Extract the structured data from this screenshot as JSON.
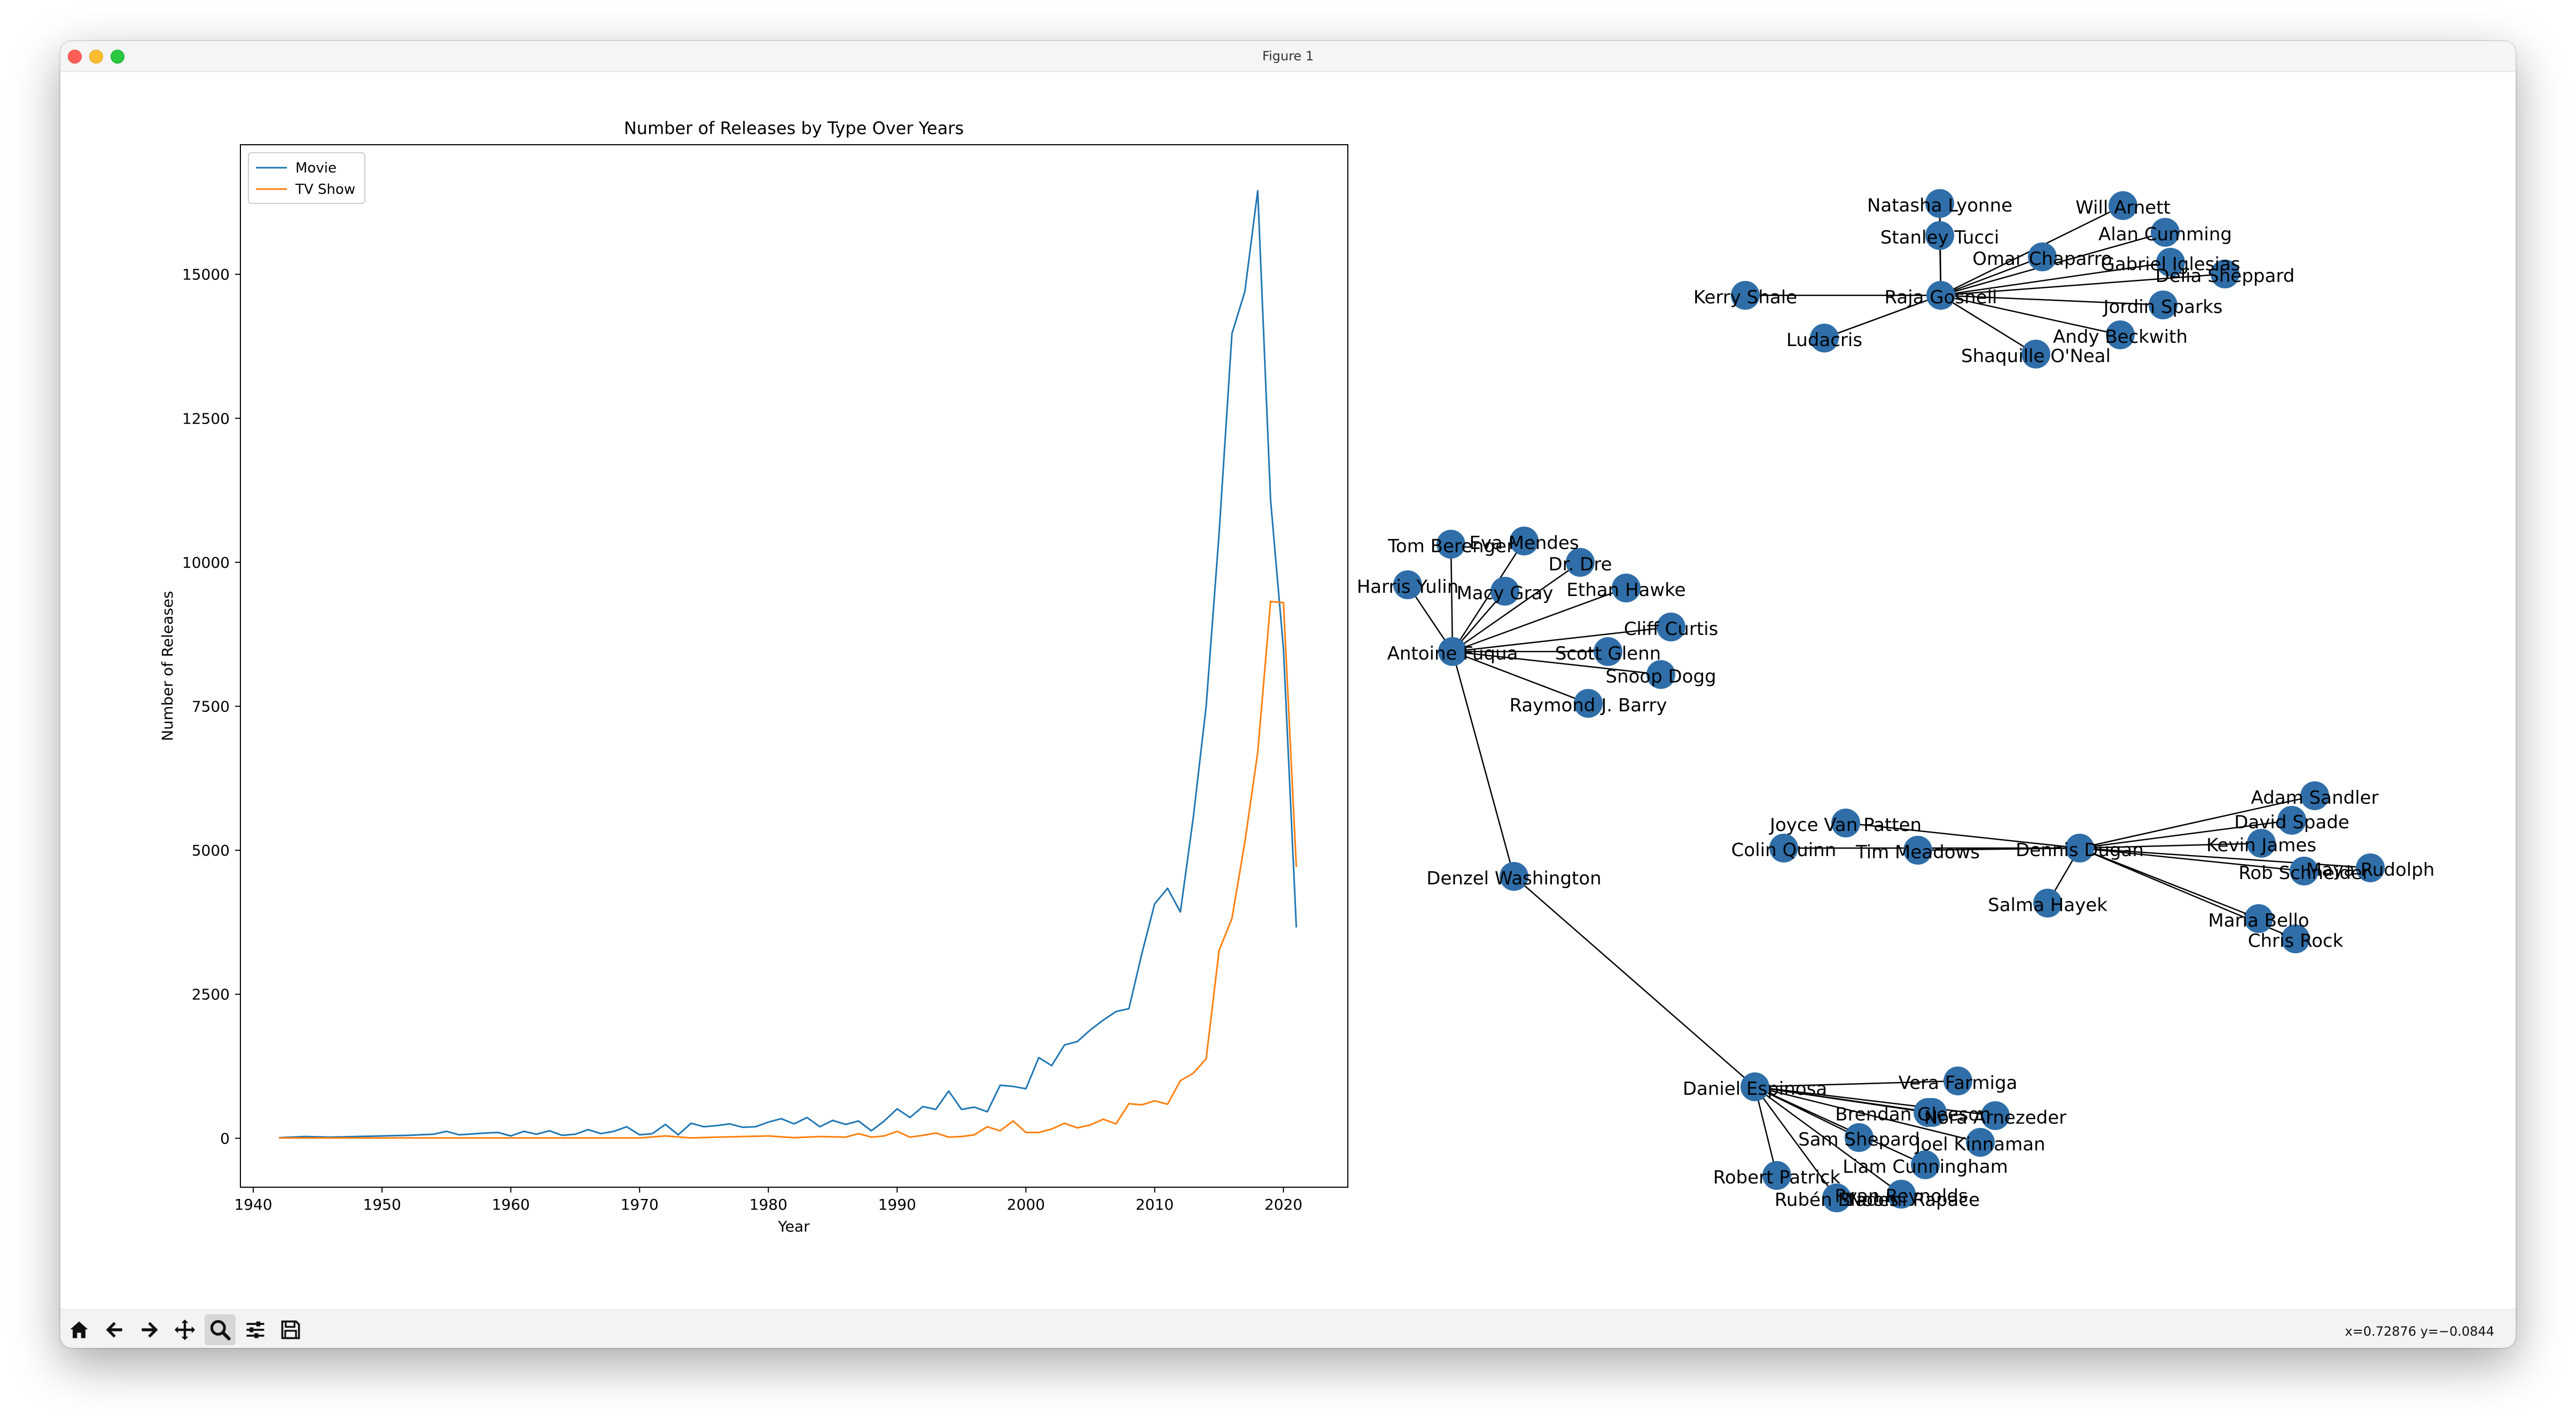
{
  "window": {
    "title": "Figure 1"
  },
  "chart_data": {
    "type": "line",
    "title": "Number of Releases by Type Over Years",
    "xlabel": "Year",
    "ylabel": "Number of Releases",
    "xlim": [
      1939,
      2025
    ],
    "ylim": [
      -850,
      17250
    ],
    "xticks": [
      1940,
      1950,
      1960,
      1970,
      1980,
      1990,
      2000,
      2010,
      2020
    ],
    "yticks": [
      0,
      2500,
      5000,
      7500,
      10000,
      12500,
      15000
    ],
    "legend": "top-left",
    "grid": false,
    "series": [
      {
        "name": "Movie",
        "color": "#1f77b4",
        "points": [
          [
            1942,
            10
          ],
          [
            1944,
            30
          ],
          [
            1946,
            20
          ],
          [
            1948,
            30
          ],
          [
            1950,
            40
          ],
          [
            1952,
            50
          ],
          [
            1954,
            70
          ],
          [
            1955,
            120
          ],
          [
            1956,
            60
          ],
          [
            1958,
            90
          ],
          [
            1959,
            100
          ],
          [
            1960,
            40
          ],
          [
            1961,
            120
          ],
          [
            1962,
            70
          ],
          [
            1963,
            130
          ],
          [
            1964,
            50
          ],
          [
            1965,
            70
          ],
          [
            1966,
            150
          ],
          [
            1967,
            80
          ],
          [
            1968,
            120
          ],
          [
            1969,
            200
          ],
          [
            1970,
            60
          ],
          [
            1971,
            80
          ],
          [
            1972,
            240
          ],
          [
            1973,
            60
          ],
          [
            1974,
            260
          ],
          [
            1975,
            200
          ],
          [
            1976,
            220
          ],
          [
            1977,
            250
          ],
          [
            1978,
            190
          ],
          [
            1979,
            200
          ],
          [
            1980,
            280
          ],
          [
            1981,
            340
          ],
          [
            1982,
            250
          ],
          [
            1983,
            360
          ],
          [
            1984,
            200
          ],
          [
            1985,
            310
          ],
          [
            1986,
            240
          ],
          [
            1987,
            300
          ],
          [
            1988,
            130
          ],
          [
            1989,
            300
          ],
          [
            1990,
            510
          ],
          [
            1991,
            360
          ],
          [
            1992,
            550
          ],
          [
            1993,
            500
          ],
          [
            1994,
            820
          ],
          [
            1995,
            500
          ],
          [
            1996,
            540
          ],
          [
            1997,
            460
          ],
          [
            1998,
            920
          ],
          [
            1999,
            900
          ],
          [
            2000,
            860
          ],
          [
            2001,
            1400
          ],
          [
            2002,
            1260
          ],
          [
            2003,
            1620
          ],
          [
            2004,
            1680
          ],
          [
            2005,
            1880
          ],
          [
            2006,
            2050
          ],
          [
            2007,
            2200
          ],
          [
            2008,
            2250
          ],
          [
            2009,
            3200
          ],
          [
            2010,
            4070
          ],
          [
            2011,
            4340
          ],
          [
            2012,
            3930
          ],
          [
            2013,
            5570
          ],
          [
            2014,
            7500
          ],
          [
            2015,
            10500
          ],
          [
            2016,
            13970
          ],
          [
            2017,
            14700
          ],
          [
            2018,
            16450
          ],
          [
            2019,
            11080
          ],
          [
            2020,
            8500
          ],
          [
            2021,
            3660
          ]
        ]
      },
      {
        "name": "TV Show",
        "color": "#ff7f0e",
        "points": [
          [
            1942,
            5
          ],
          [
            1945,
            5
          ],
          [
            1950,
            5
          ],
          [
            1955,
            5
          ],
          [
            1960,
            5
          ],
          [
            1965,
            5
          ],
          [
            1970,
            5
          ],
          [
            1972,
            40
          ],
          [
            1974,
            5
          ],
          [
            1976,
            20
          ],
          [
            1978,
            30
          ],
          [
            1980,
            40
          ],
          [
            1982,
            10
          ],
          [
            1984,
            30
          ],
          [
            1986,
            20
          ],
          [
            1987,
            80
          ],
          [
            1988,
            20
          ],
          [
            1989,
            40
          ],
          [
            1990,
            120
          ],
          [
            1991,
            20
          ],
          [
            1992,
            50
          ],
          [
            1993,
            90
          ],
          [
            1994,
            20
          ],
          [
            1995,
            30
          ],
          [
            1996,
            60
          ],
          [
            1997,
            200
          ],
          [
            1998,
            130
          ],
          [
            1999,
            300
          ],
          [
            2000,
            100
          ],
          [
            2001,
            100
          ],
          [
            2002,
            160
          ],
          [
            2003,
            260
          ],
          [
            2004,
            180
          ],
          [
            2005,
            230
          ],
          [
            2006,
            330
          ],
          [
            2007,
            250
          ],
          [
            2008,
            600
          ],
          [
            2009,
            580
          ],
          [
            2010,
            650
          ],
          [
            2011,
            590
          ],
          [
            2012,
            1000
          ],
          [
            2013,
            1130
          ],
          [
            2014,
            1380
          ],
          [
            2015,
            3260
          ],
          [
            2016,
            3820
          ],
          [
            2017,
            5140
          ],
          [
            2018,
            6700
          ],
          [
            2019,
            9320
          ],
          [
            2020,
            9300
          ],
          [
            2021,
            4710
          ]
        ]
      }
    ]
  },
  "network": {
    "node_color": "#2f6ea8",
    "nodes": [
      {
        "id": "natasha",
        "label": "Natasha Lyonne"
      },
      {
        "id": "stanley",
        "label": "Stanley Tucci"
      },
      {
        "id": "will",
        "label": "Will Arnett"
      },
      {
        "id": "alan",
        "label": "Alan Cumming"
      },
      {
        "id": "omar",
        "label": "Omar Chaparro"
      },
      {
        "id": "gabriel",
        "label": "Gabriel Iglesias"
      },
      {
        "id": "delia",
        "label": "Delia Sheppard"
      },
      {
        "id": "kerry",
        "label": "Kerry Shale"
      },
      {
        "id": "raja",
        "label": "Raja Gosnell"
      },
      {
        "id": "jordin",
        "label": "Jordin Sparks"
      },
      {
        "id": "andy",
        "label": "Andy Beckwith"
      },
      {
        "id": "ludacris",
        "label": "Ludacris"
      },
      {
        "id": "shaquille",
        "label": "Shaquille O'Neal"
      },
      {
        "id": "tom",
        "label": "Tom Berenger"
      },
      {
        "id": "eva",
        "label": "Eva Mendes"
      },
      {
        "id": "drdre",
        "label": "Dr. Dre"
      },
      {
        "id": "harris",
        "label": "Harris Yulin"
      },
      {
        "id": "macy",
        "label": "Macy Gray"
      },
      {
        "id": "ethan",
        "label": "Ethan Hawke"
      },
      {
        "id": "cliff",
        "label": "Cliff Curtis"
      },
      {
        "id": "antoine",
        "label": "Antoine Fuqua"
      },
      {
        "id": "scott",
        "label": "Scott Glenn"
      },
      {
        "id": "snoop",
        "label": "Snoop Dogg"
      },
      {
        "id": "raymond",
        "label": "Raymond J. Barry"
      },
      {
        "id": "denzel",
        "label": "Denzel Washington"
      },
      {
        "id": "adam",
        "label": "Adam Sandler"
      },
      {
        "id": "joyce",
        "label": "Joyce Van Patten"
      },
      {
        "id": "david",
        "label": "David Spade"
      },
      {
        "id": "kevin",
        "label": "Kevin James"
      },
      {
        "id": "colin",
        "label": "Colin Quinn"
      },
      {
        "id": "tim",
        "label": "Tim Meadows"
      },
      {
        "id": "dennis",
        "label": "Dennis Dugan"
      },
      {
        "id": "maya",
        "label": "Maya Rudolph"
      },
      {
        "id": "rob",
        "label": "Rob Schneider"
      },
      {
        "id": "salma",
        "label": "Salma Hayek"
      },
      {
        "id": "maria",
        "label": "Maria Bello"
      },
      {
        "id": "chris",
        "label": "Chris Rock"
      },
      {
        "id": "vera",
        "label": "Vera Farmiga"
      },
      {
        "id": "daniel",
        "label": "Daniel Espinosa"
      },
      {
        "id": "brendan",
        "label": "Brendan Gleeson"
      },
      {
        "id": "noomi",
        "label": "Noomi Rapace"
      },
      {
        "id": "nora",
        "label": "Nora Arnezeder"
      },
      {
        "id": "sam",
        "label": "Sam Shepard"
      },
      {
        "id": "joel",
        "label": "Joel Kinnaman"
      },
      {
        "id": "liam",
        "label": "Liam Cunningham"
      },
      {
        "id": "robert",
        "label": "Robert Patrick"
      },
      {
        "id": "ruben",
        "label": "Rubén Blades"
      },
      {
        "id": "ryan",
        "label": "Ryan Reynolds"
      }
    ],
    "edges": [
      [
        "raja",
        "natasha"
      ],
      [
        "raja",
        "stanley"
      ],
      [
        "natasha",
        "stanley"
      ],
      [
        "raja",
        "will"
      ],
      [
        "raja",
        "alan"
      ],
      [
        "raja",
        "omar"
      ],
      [
        "raja",
        "gabriel"
      ],
      [
        "raja",
        "delia"
      ],
      [
        "raja",
        "kerry"
      ],
      [
        "raja",
        "jordin"
      ],
      [
        "raja",
        "andy"
      ],
      [
        "raja",
        "ludacris"
      ],
      [
        "raja",
        "shaquille"
      ],
      [
        "antoine",
        "tom"
      ],
      [
        "antoine",
        "eva"
      ],
      [
        "antoine",
        "drdre"
      ],
      [
        "antoine",
        "harris"
      ],
      [
        "antoine",
        "macy"
      ],
      [
        "antoine",
        "ethan"
      ],
      [
        "antoine",
        "cliff"
      ],
      [
        "antoine",
        "scott"
      ],
      [
        "antoine",
        "snoop"
      ],
      [
        "antoine",
        "raymond"
      ],
      [
        "antoine",
        "denzel"
      ],
      [
        "denzel",
        "daniel"
      ],
      [
        "dennis",
        "adam"
      ],
      [
        "dennis",
        "joyce"
      ],
      [
        "dennis",
        "david"
      ],
      [
        "dennis",
        "kevin"
      ],
      [
        "dennis",
        "colin"
      ],
      [
        "dennis",
        "tim"
      ],
      [
        "dennis",
        "maya"
      ],
      [
        "dennis",
        "rob"
      ],
      [
        "dennis",
        "salma"
      ],
      [
        "dennis",
        "maria"
      ],
      [
        "dennis",
        "chris"
      ],
      [
        "daniel",
        "vera"
      ],
      [
        "daniel",
        "brendan"
      ],
      [
        "daniel",
        "noomi"
      ],
      [
        "daniel",
        "nora"
      ],
      [
        "daniel",
        "sam"
      ],
      [
        "daniel",
        "joel"
      ],
      [
        "daniel",
        "liam"
      ],
      [
        "daniel",
        "robert"
      ],
      [
        "daniel",
        "ruben"
      ],
      [
        "daniel",
        "ryan"
      ]
    ]
  },
  "toolbar": {
    "tools": [
      {
        "id": "home",
        "icon": "home-icon"
      },
      {
        "id": "back",
        "icon": "back-arrow-icon"
      },
      {
        "id": "forward",
        "icon": "forward-arrow-icon"
      },
      {
        "id": "pan",
        "icon": "pan-icon"
      },
      {
        "id": "zoom",
        "icon": "zoom-icon",
        "active": true
      },
      {
        "id": "configure",
        "icon": "sliders-icon"
      },
      {
        "id": "save",
        "icon": "save-icon"
      }
    ],
    "coordinates": "x=0.72876 y=−0.0844"
  }
}
